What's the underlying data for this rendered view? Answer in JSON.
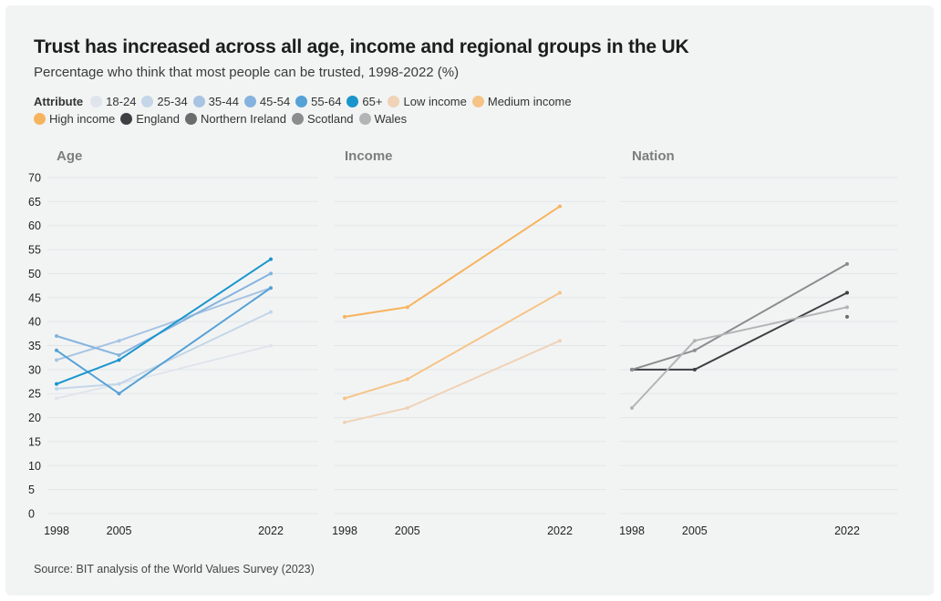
{
  "title": "Trust has increased across all age, income and regional groups in the UK",
  "subtitle": "Percentage who think that most people can be trusted, 1998-2022 (%)",
  "legend_title": "Attribute",
  "source": "Source: BIT analysis of the World Values Survey (2023)",
  "legend": [
    {
      "label": "18-24",
      "color": "#dfe5ec"
    },
    {
      "label": "25-34",
      "color": "#c4d6e8"
    },
    {
      "label": "35-44",
      "color": "#a8c4e2"
    },
    {
      "label": "45-54",
      "color": "#85b3de"
    },
    {
      "label": "55-64",
      "color": "#56a1d6"
    },
    {
      "label": "65+",
      "color": "#1a95cc"
    },
    {
      "label": "Low income",
      "color": "#f0d2b6"
    },
    {
      "label": "Medium income",
      "color": "#f6c488"
    },
    {
      "label": "High income",
      "color": "#f6b45f"
    },
    {
      "label": "England",
      "color": "#3d3f42"
    },
    {
      "label": "Northern Ireland",
      "color": "#6a6c6e"
    },
    {
      "label": "Scotland",
      "color": "#8a8c8e"
    },
    {
      "label": "Wales",
      "color": "#b2b4b6"
    }
  ],
  "chart_data": {
    "type": "line",
    "x": [
      1998,
      2005,
      2022
    ],
    "ylim": [
      0,
      70
    ],
    "yticks": [
      0,
      5,
      10,
      15,
      20,
      25,
      30,
      35,
      40,
      45,
      50,
      55,
      60,
      65,
      70
    ],
    "panels": [
      {
        "title": "Age",
        "series": [
          {
            "name": "18-24",
            "color": "#dfe5ec",
            "values": [
              24,
              27,
              35
            ]
          },
          {
            "name": "25-34",
            "color": "#c4d6e8",
            "values": [
              26,
              27,
              42
            ]
          },
          {
            "name": "35-44",
            "color": "#a8c4e2",
            "values": [
              32,
              36,
              47
            ]
          },
          {
            "name": "45-54",
            "color": "#85b3de",
            "values": [
              37,
              33,
              50
            ]
          },
          {
            "name": "55-64",
            "color": "#56a1d6",
            "values": [
              34,
              25,
              47
            ]
          },
          {
            "name": "65+",
            "color": "#1a95cc",
            "values": [
              27,
              32,
              53
            ]
          }
        ]
      },
      {
        "title": "Income",
        "series": [
          {
            "name": "Low income",
            "color": "#f0d2b6",
            "values": [
              19,
              22,
              36
            ]
          },
          {
            "name": "Medium income",
            "color": "#f6c488",
            "values": [
              24,
              28,
              46
            ]
          },
          {
            "name": "High income",
            "color": "#f6b45f",
            "values": [
              41,
              43,
              64
            ]
          }
        ]
      },
      {
        "title": "Nation",
        "series": [
          {
            "name": "England",
            "color": "#3d3f42",
            "values": [
              30,
              30,
              46
            ]
          },
          {
            "name": "Northern Ireland",
            "color": "#6a6c6e",
            "values": [
              null,
              null,
              41
            ]
          },
          {
            "name": "Scotland",
            "color": "#8a8c8e",
            "values": [
              30,
              34,
              52
            ]
          },
          {
            "name": "Wales",
            "color": "#b2b4b6",
            "values": [
              22,
              36,
              43
            ]
          }
        ]
      }
    ]
  }
}
